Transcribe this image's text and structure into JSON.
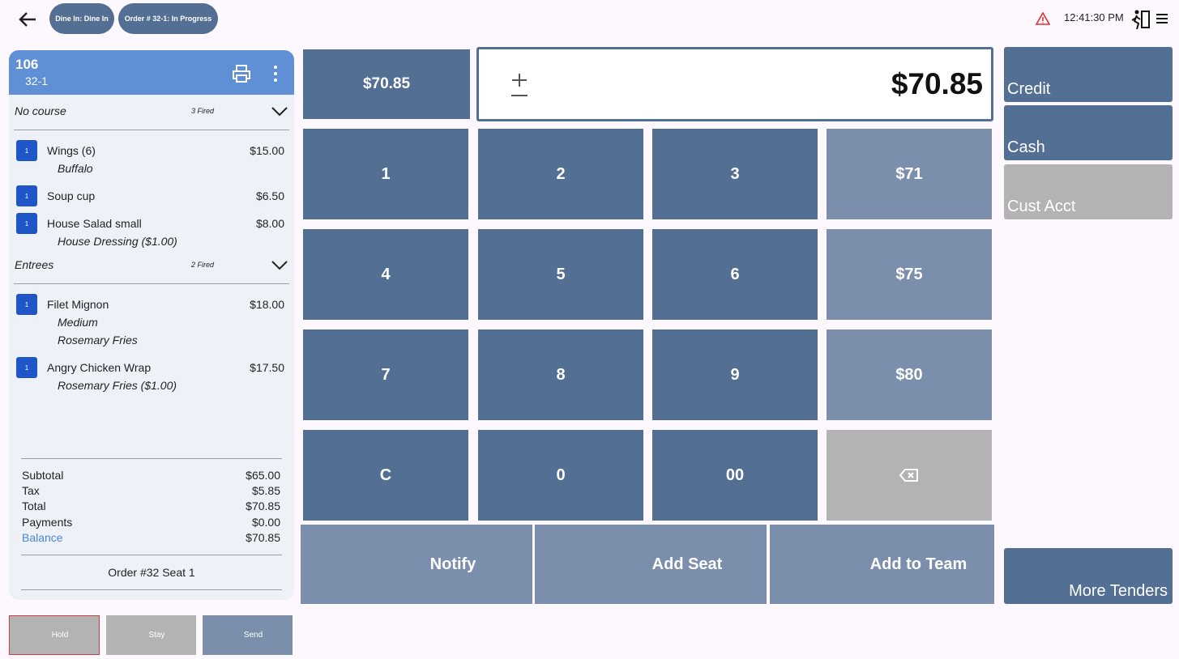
{
  "header": {
    "chips": [
      "Dine In: Dine In",
      "Order # 32-1: In Progress"
    ],
    "time": "12:41:30 PM"
  },
  "check": {
    "table": "106",
    "seat": "32-1",
    "courses": [
      {
        "name": "No course",
        "fired": "3 Fired",
        "items": [
          {
            "qty": "1",
            "name": "Wings (6)",
            "price": "$15.00",
            "mods": [
              "Buffalo"
            ]
          },
          {
            "qty": "1",
            "name": "Soup cup",
            "price": "$6.50",
            "mods": []
          },
          {
            "qty": "1",
            "name": "House Salad small",
            "price": "$8.00",
            "mods": [
              "House Dressing ($1.00)"
            ]
          }
        ]
      },
      {
        "name": "Entrees",
        "fired": "2 Fired",
        "items": [
          {
            "qty": "1",
            "name": "Filet Mignon",
            "price": "$18.00",
            "mods": [
              "Medium",
              "Rosemary Fries"
            ]
          },
          {
            "qty": "1",
            "name": "Angry Chicken Wrap",
            "price": "$17.50",
            "mods": [
              "Rosemary Fries ($1.00)"
            ]
          }
        ]
      }
    ],
    "totals": [
      {
        "label": "Subtotal",
        "value": "$65.00"
      },
      {
        "label": "Tax",
        "value": "$5.85"
      },
      {
        "label": "Total",
        "value": "$70.85"
      },
      {
        "label": "Payments",
        "value": "$0.00"
      },
      {
        "label": "Balance",
        "value": "$70.85"
      }
    ],
    "order_seat": "Order #32 Seat 1"
  },
  "actions": [
    "Hold",
    "Stay",
    "Send"
  ],
  "amount": {
    "quick": "$70.85",
    "display": "$70.85"
  },
  "keypad": [
    [
      "1",
      "2",
      "3",
      "$71"
    ],
    [
      "4",
      "5",
      "6",
      "$75"
    ],
    [
      "7",
      "8",
      "9",
      "$80"
    ],
    [
      "C",
      "0",
      "00"
    ]
  ],
  "bottom_buttons": [
    "Notify",
    "Add Seat",
    "Add to Team"
  ],
  "tenders": [
    "Credit",
    "Cash",
    "Cust Acct"
  ],
  "more_tenders": "More Tenders"
}
